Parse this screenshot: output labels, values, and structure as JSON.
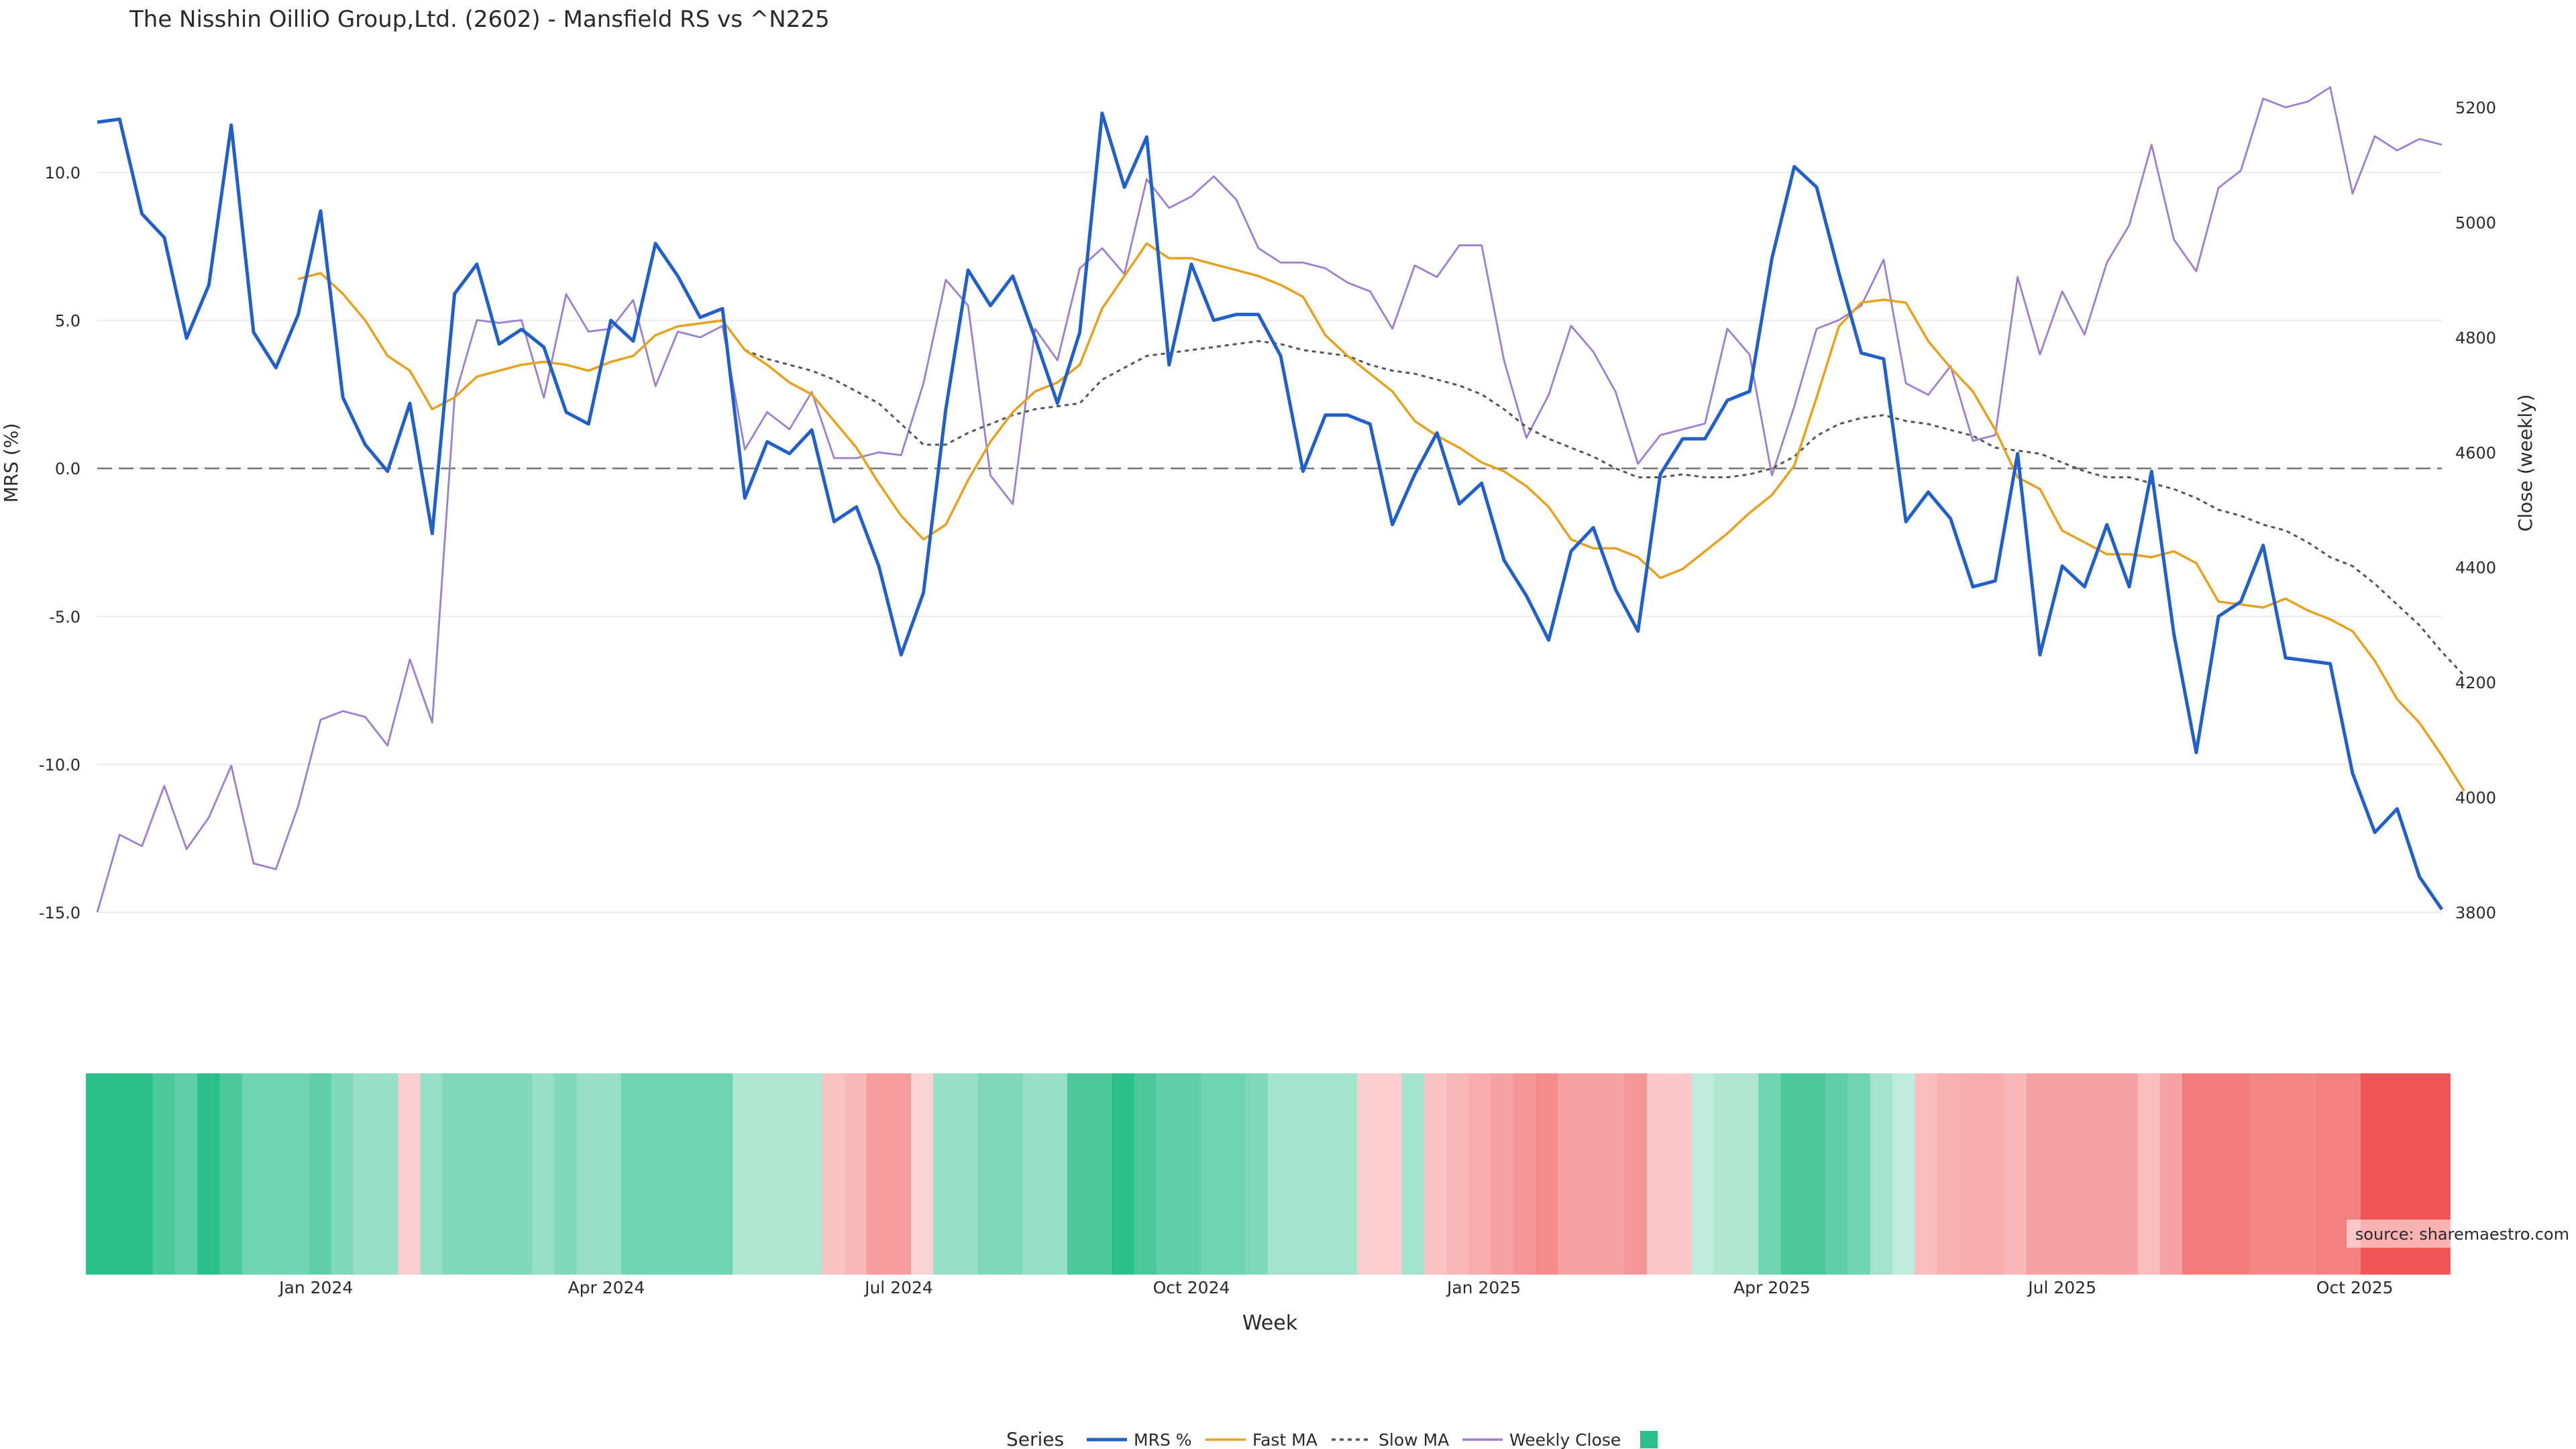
{
  "chart_data": {
    "type": "line",
    "title": "The Nisshin OilliO Group,Ltd. (2602) - Mansfield RS vs ^N225",
    "xlabel": "Week",
    "ylabel_left": "MRS (%)",
    "ylabel_right": "Close (weekly)",
    "y_left_range": [
      -15.0,
      12.2
    ],
    "y_left_ticks": [
      "10.0",
      "5.0",
      "0.0",
      "-5.0",
      "-10.0",
      "-15.0"
    ],
    "y_right_range": [
      3800,
      5200
    ],
    "y_right_ticks": [
      "5200",
      "5000",
      "4800",
      "4600",
      "4400",
      "4200",
      "4000",
      "3800"
    ],
    "x_range_weeks": [
      0,
      105
    ],
    "x_ticks": [
      {
        "label": "Jan 2024",
        "week": 9.8
      },
      {
        "label": "Apr 2024",
        "week": 22.8
      },
      {
        "label": "Jul 2024",
        "week": 35.9
      },
      {
        "label": "Oct 2024",
        "week": 49.0
      },
      {
        "label": "Jan 2025",
        "week": 62.1
      },
      {
        "label": "Apr 2025",
        "week": 75.0
      },
      {
        "label": "Jul 2025",
        "week": 88.0
      },
      {
        "label": "Oct 2025",
        "week": 101.1
      }
    ],
    "zero_line": 0,
    "grid": true,
    "legend": {
      "title": "Series",
      "position": "bottom",
      "entries": [
        "MRS %",
        "Fast MA",
        "Slow MA",
        "Weekly Close",
        ""
      ]
    },
    "colors": {
      "mrs": "#2160c8",
      "fast": "#e6a21d",
      "slow": "#555555",
      "close": "#9d7fd1",
      "strip_positive": "#2bbf8c",
      "strip_negative": "#ef5555"
    },
    "source": "source: sharemaestro.com",
    "series": [
      {
        "name": "MRS %",
        "values": [
          11.7,
          11.8,
          8.6,
          7.8,
          4.4,
          6.2,
          11.6,
          4.6,
          3.4,
          5.2,
          8.7,
          2.4,
          0.8,
          -0.1,
          2.2,
          -2.2,
          5.9,
          6.9,
          4.2,
          4.7,
          4.1,
          1.9,
          1.5,
          5.0,
          4.3,
          7.6,
          6.5,
          5.1,
          5.4,
          -1.0,
          0.9,
          0.5,
          1.3,
          -1.8,
          -1.3,
          -3.3,
          -6.3,
          -4.2,
          2.0,
          6.7,
          5.5,
          6.5,
          4.4,
          2.2,
          4.6,
          12.0,
          9.5,
          11.2,
          3.5,
          6.9,
          5.0,
          5.2,
          5.2,
          3.8,
          -0.1,
          1.8,
          1.8,
          1.5,
          -1.9,
          -0.2,
          1.2,
          -1.2,
          -0.5,
          -3.1,
          -4.3,
          -5.8,
          -2.8,
          -2.0,
          -4.1,
          -5.5,
          -0.2,
          1.0,
          1.0,
          2.3,
          2.6,
          7.1,
          10.2,
          9.5,
          6.6,
          3.9,
          3.7,
          -1.8,
          -0.8,
          -1.7,
          -4.0,
          -3.8,
          0.5,
          -6.3,
          -3.3,
          -4.0,
          -1.9,
          -4.0,
          -0.1,
          -5.6,
          -9.6,
          -5.0,
          -4.5,
          -2.6,
          -6.4,
          -6.5,
          -6.6,
          -10.3,
          -12.3,
          -11.5,
          -13.8,
          -14.9
        ]
      },
      {
        "name": "Fast MA",
        "values": [
          null,
          null,
          null,
          null,
          null,
          null,
          null,
          null,
          null,
          6.4,
          6.6,
          5.9,
          5.0,
          3.8,
          3.3,
          2.0,
          2.4,
          3.1,
          3.3,
          3.5,
          3.6,
          3.5,
          3.3,
          3.6,
          3.8,
          4.5,
          4.8,
          4.9,
          5.0,
          4.0,
          3.5,
          2.9,
          2.5,
          1.6,
          0.7,
          -0.5,
          -1.6,
          -2.4,
          -1.9,
          -0.4,
          0.9,
          1.9,
          2.6,
          2.9,
          3.5,
          5.4,
          6.5,
          7.6,
          7.1,
          7.1,
          6.9,
          6.7,
          6.5,
          6.2,
          5.8,
          4.5,
          3.8,
          3.2,
          2.6,
          1.6,
          1.1,
          0.7,
          0.2,
          -0.1,
          -0.6,
          -1.3,
          -2.4,
          -2.7,
          -2.7,
          -3.0,
          -3.7,
          -3.4,
          -2.8,
          -2.2,
          -1.5,
          -0.9,
          0.1,
          2.4,
          4.8,
          5.6,
          5.7,
          5.6,
          4.3,
          3.4,
          2.6,
          1.3,
          -0.3,
          -0.7,
          -2.1,
          -2.5,
          -2.9,
          -2.9,
          -3.0,
          -2.8,
          -3.2,
          -4.5,
          -4.6,
          -4.7,
          -4.4,
          -4.8,
          -5.1,
          -5.5,
          -6.5,
          -7.8,
          -8.6,
          -9.7,
          -10.9
        ]
      },
      {
        "name": "Slow MA",
        "values": [
          null,
          null,
          null,
          null,
          null,
          null,
          null,
          null,
          null,
          null,
          null,
          null,
          null,
          null,
          null,
          null,
          null,
          null,
          null,
          null,
          null,
          null,
          null,
          null,
          null,
          null,
          null,
          null,
          null,
          4.0,
          3.7,
          3.5,
          3.3,
          3.0,
          2.6,
          2.2,
          1.5,
          0.8,
          0.8,
          1.2,
          1.5,
          1.8,
          2.0,
          2.1,
          2.2,
          3.0,
          3.4,
          3.8,
          3.9,
          4.0,
          4.1,
          4.2,
          4.3,
          4.2,
          4.0,
          3.9,
          3.8,
          3.5,
          3.3,
          3.2,
          3.0,
          2.8,
          2.5,
          2.0,
          1.4,
          1.0,
          0.7,
          0.4,
          0.0,
          -0.3,
          -0.3,
          -0.2,
          -0.3,
          -0.3,
          -0.2,
          0.0,
          0.4,
          1.1,
          1.5,
          1.7,
          1.8,
          1.6,
          1.5,
          1.3,
          1.1,
          0.7,
          0.6,
          0.5,
          0.2,
          -0.1,
          -0.3,
          -0.3,
          -0.5,
          -0.7,
          -1.0,
          -1.4,
          -1.6,
          -1.9,
          -2.1,
          -2.5,
          -3.0,
          -3.3,
          -3.9,
          -4.6,
          -5.3,
          -6.2,
          -7.0
        ]
      },
      {
        "name": "Weekly Close",
        "values": [
          3800,
          3935,
          3915,
          4020,
          3910,
          3965,
          4055,
          3885,
          3875,
          3985,
          4135,
          4150,
          4140,
          4090,
          4240,
          4130,
          4695,
          4830,
          4825,
          4830,
          4695,
          4875,
          4810,
          4815,
          4865,
          4715,
          4810,
          4800,
          4820,
          4605,
          4670,
          4640,
          4705,
          4590,
          4590,
          4600,
          4595,
          4720,
          4900,
          4855,
          4560,
          4510,
          4815,
          4760,
          4920,
          4955,
          4910,
          5075,
          5025,
          5045,
          5080,
          5040,
          4955,
          4930,
          4930,
          4920,
          4895,
          4880,
          4815,
          4925,
          4905,
          4960,
          4960,
          4760,
          4625,
          4700,
          4820,
          4775,
          4705,
          4580,
          4630,
          4640,
          4650,
          4815,
          4770,
          4560,
          4680,
          4815,
          4830,
          4855,
          4935,
          4720,
          4700,
          4750,
          4620,
          4630,
          4905,
          4770,
          4880,
          4805,
          4930,
          4995,
          5135,
          4970,
          4915,
          5060,
          5090,
          5215,
          5200,
          5210,
          5235,
          5050,
          5150,
          5125,
          5145,
          5135
        ]
      }
    ],
    "strip_values": [
      3.3,
      3.3,
      3.3,
      2.7,
      2.3,
      3.3,
      2.7,
      2.0,
      2.0,
      2.0,
      2.3,
      1.7,
      1.3,
      1.3,
      -0.4,
      1.3,
      1.7,
      1.7,
      1.7,
      1.7,
      1.3,
      1.7,
      1.3,
      1.3,
      2.0,
      2.0,
      2.0,
      2.0,
      2.0,
      0.8,
      0.8,
      0.8,
      0.8,
      -0.6,
      -0.8,
      -1.3,
      -1.3,
      -0.3,
      1.3,
      1.3,
      1.7,
      1.7,
      1.3,
      1.3,
      2.7,
      2.7,
      3.3,
      2.7,
      2.3,
      2.3,
      2.0,
      2.0,
      1.7,
      1.0,
      1.0,
      1.0,
      1.0,
      -0.4,
      -0.4,
      1.0,
      -0.6,
      -0.8,
      -1.0,
      -1.2,
      -1.4,
      -1.6,
      -1.2,
      -1.2,
      -1.2,
      -1.4,
      -0.5,
      -0.5,
      0.5,
      0.8,
      0.8,
      2.0,
      2.7,
      2.7,
      2.3,
      2.0,
      1.0,
      0.5,
      -0.7,
      -0.9,
      -1.0,
      -1.0,
      -0.8,
      -1.2,
      -1.2,
      -1.2,
      -1.2,
      -1.2,
      -0.7,
      -1.2,
      -1.9,
      -1.9,
      -1.9,
      -1.7,
      -1.7,
      -1.7,
      -1.8,
      -1.8,
      -2.6,
      -2.6,
      -2.6,
      -2.6
    ]
  }
}
